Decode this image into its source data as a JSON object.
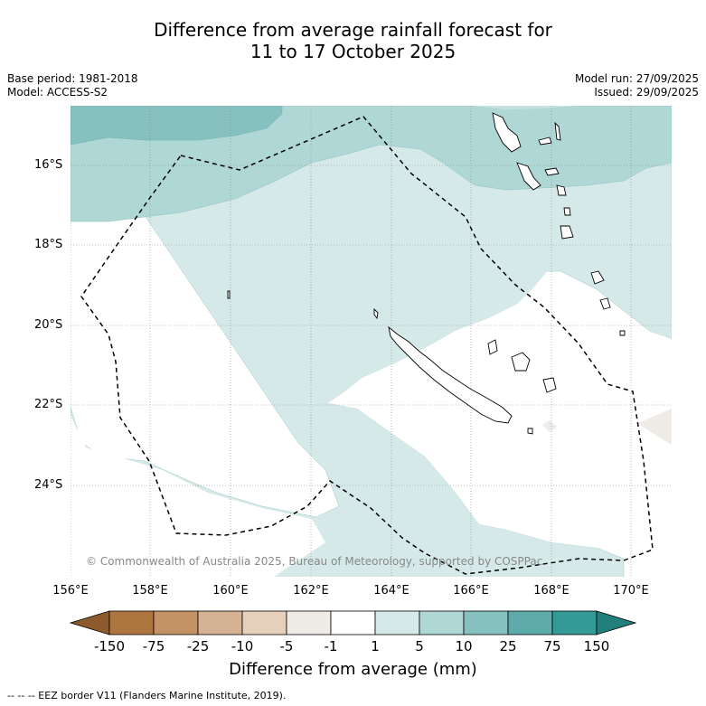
{
  "title": {
    "line1": "Difference from average rainfall forecast for",
    "line2": "11 to 17 October 2025"
  },
  "meta": {
    "base_period": "Base period: 1981-2018",
    "model": "Model: ACCESS-S2",
    "model_run": "Model run: 27/09/2025",
    "issued": "Issued: 29/09/2025"
  },
  "map": {
    "copyright": "© Commonwealth of Australia 2025, Bureau of Meteorology, supported by COSPPac",
    "lat_labels": [
      "16°S",
      "18°S",
      "20°S",
      "22°S",
      "24°S"
    ],
    "lon_labels": [
      "156°E",
      "158°E",
      "160°E",
      "162°E",
      "164°E",
      "166°E",
      "168°E",
      "170°E"
    ]
  },
  "colorbar": {
    "title": "Difference from average (mm)",
    "labels": [
      "-150",
      "-75",
      "-25",
      "-10",
      "-5",
      "-1",
      "1",
      "5",
      "10",
      "25",
      "75",
      "150"
    ],
    "colors": {
      "below_min": "#8c5a2b",
      "c_m150_m75": "#ad7540",
      "c_m75_m25": "#c39366",
      "c_m25_m10": "#d4b293",
      "c_m10_m5": "#e6d0bb",
      "c_m5_m1": "#efebe7",
      "c_m1_1": "#ffffff",
      "c_1_5": "#d5eae8",
      "c_5_10": "#afd7d6",
      "c_10_25": "#86c1bf",
      "c_25_75": "#5dabaa",
      "c_75_150": "#359a96",
      "above_max": "#22807c"
    }
  },
  "footnote": "-- -- -- EEZ border V11 (Flanders Marine Institute, 2019)."
}
